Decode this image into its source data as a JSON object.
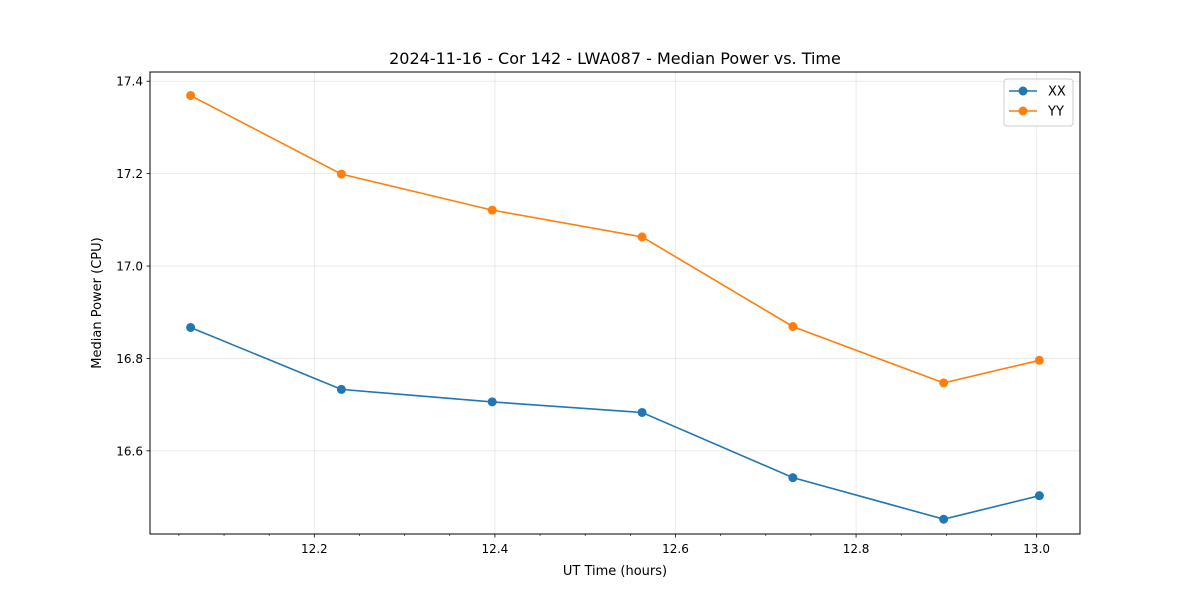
{
  "chart_data": {
    "type": "line",
    "title": "2024-11-16 - Cor 142 - LWA087 - Median Power vs. Time",
    "xlabel": "UT Time (hours)",
    "ylabel": "Median Power (CPU)",
    "xlim": [
      12.018,
      13.048
    ],
    "ylim": [
      16.42,
      17.42
    ],
    "xticks": [
      12.2,
      12.4,
      12.6,
      12.8,
      13.0
    ],
    "xtick_labels": [
      "12.2",
      "12.4",
      "12.6",
      "12.8",
      "13.0"
    ],
    "xminor_step": 0.05,
    "yticks": [
      16.6,
      16.8,
      17.0,
      17.2,
      17.4
    ],
    "ytick_labels": [
      "16.6",
      "16.8",
      "17.0",
      "17.2",
      "17.4"
    ],
    "grid": true,
    "legend_position": "top-right",
    "x": [
      12.063,
      12.23,
      12.397,
      12.563,
      12.73,
      12.897,
      13.003
    ],
    "series": [
      {
        "name": "XX",
        "color": "#1f77b4",
        "marker": "circle",
        "values": [
          16.867,
          16.733,
          16.706,
          16.683,
          16.542,
          16.452,
          16.503
        ]
      },
      {
        "name": "YY",
        "color": "#ff7f0e",
        "marker": "circle",
        "values": [
          17.369,
          17.199,
          17.121,
          17.063,
          16.869,
          16.747,
          16.796
        ]
      }
    ]
  }
}
